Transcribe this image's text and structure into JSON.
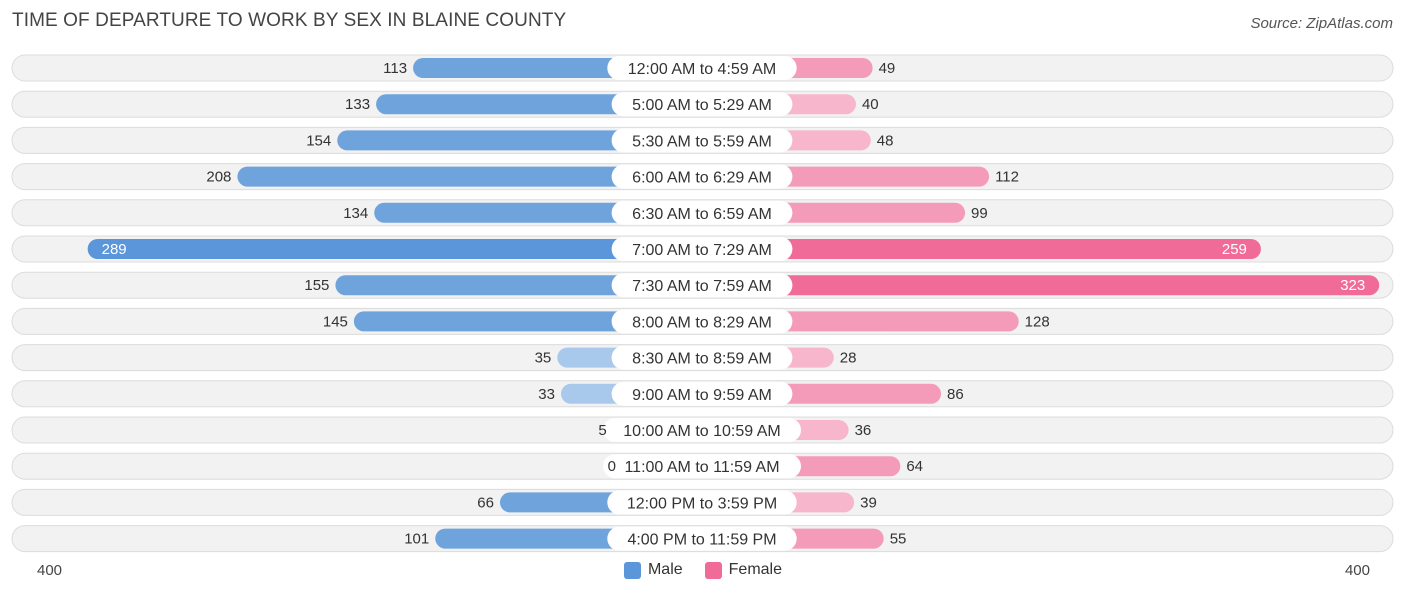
{
  "header": {
    "title": "TIME OF DEPARTURE TO WORK BY SEX IN BLAINE COUNTY",
    "source": "Source: ZipAtlas.com"
  },
  "colors": {
    "male": "#6fa3dc",
    "male_light": "#a9c9ec",
    "male_strong": "#5b95da",
    "female": "#f49bb9",
    "female_light": "#f7b6cc",
    "female_strong": "#f06b98",
    "row_bg": "#f2f2f2",
    "row_border": "#dcdcdc"
  },
  "axis": {
    "left_label": "400",
    "right_label": "400"
  },
  "legend": {
    "male": "Male",
    "female": "Female"
  },
  "chart_data": {
    "type": "bar",
    "orientation": "horizontal-diverging",
    "title": "TIME OF DEPARTURE TO WORK BY SEX IN BLAINE COUNTY",
    "xlim": [
      -400,
      400
    ],
    "legend_position": "bottom-center",
    "categories": [
      "12:00 AM to 4:59 AM",
      "5:00 AM to 5:29 AM",
      "5:30 AM to 5:59 AM",
      "6:00 AM to 6:29 AM",
      "6:30 AM to 6:59 AM",
      "7:00 AM to 7:29 AM",
      "7:30 AM to 7:59 AM",
      "8:00 AM to 8:29 AM",
      "8:30 AM to 8:59 AM",
      "9:00 AM to 9:59 AM",
      "10:00 AM to 10:59 AM",
      "11:00 AM to 11:59 AM",
      "12:00 PM to 3:59 PM",
      "4:00 PM to 11:59 PM"
    ],
    "series": [
      {
        "name": "Male",
        "values": [
          113,
          133,
          154,
          208,
          134,
          289,
          155,
          145,
          35,
          33,
          5,
          0,
          66,
          101
        ]
      },
      {
        "name": "Female",
        "values": [
          49,
          40,
          48,
          112,
          99,
          259,
          323,
          128,
          28,
          86,
          36,
          64,
          39,
          55
        ]
      }
    ]
  }
}
